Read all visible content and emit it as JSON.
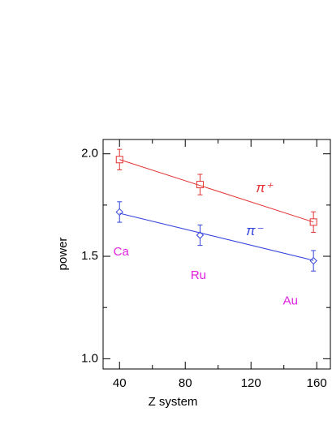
{
  "chart_data": {
    "type": "scatter",
    "x_label": "Z system",
    "y_label": "power",
    "xlim": [
      30,
      168.3
    ],
    "ylim": [
      0.95,
      2.07
    ],
    "xticks": [
      40,
      80,
      120,
      160
    ],
    "yticks": [
      {
        "value": 1.0,
        "label": "1.0"
      },
      1.5,
      {
        "value": 2.0,
        "label": "2.0"
      }
    ],
    "series": [
      {
        "color": "#e33333",
        "marker": "square",
        "x": [
          40,
          89,
          158
        ],
        "values": [
          1.972,
          1.85,
          1.667
        ],
        "errors": [
          0.05,
          0.05,
          0.05
        ],
        "fit": {
          "x": [
            40,
            158
          ],
          "values": [
            1.972,
            1.667
          ]
        }
      },
      {
        "color": "#3344dd",
        "marker": "diamond",
        "x": [
          40,
          89,
          158
        ],
        "values": [
          1.716,
          1.603,
          1.478
        ],
        "errors": [
          0.05,
          0.05,
          0.05
        ],
        "fit": {
          "x": [
            40,
            158
          ],
          "values": [
            1.71,
            1.48
          ]
        }
      }
    ],
    "annotations": [
      {
        "text": "π⁺",
        "x": 128,
        "y": 1.83,
        "color": "#e33333"
      },
      {
        "text": "π⁻",
        "x": 122,
        "y": 1.62,
        "color": "#3344dd"
      },
      {
        "text": "Ca",
        "x": 41,
        "y": 1.52,
        "color": "#e020e0"
      },
      {
        "text": "Ru",
        "x": 88,
        "y": 1.405,
        "color": "#e020e0"
      },
      {
        "text": "Au",
        "x": 144,
        "y": 1.28,
        "color": "#e020e0"
      }
    ]
  }
}
